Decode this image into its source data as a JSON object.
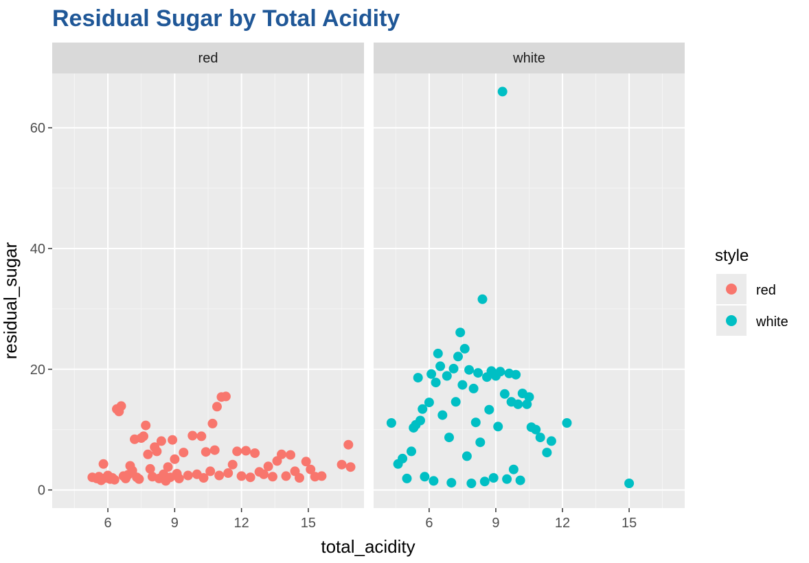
{
  "chart_data": {
    "type": "scatter",
    "title": "Residual Sugar by Total Acidity",
    "xlabel": "total_acidity",
    "ylabel": "residual_sugar",
    "xlim": [
      3.5,
      17.5
    ],
    "ylim": [
      -3,
      69
    ],
    "x_ticks": [
      6,
      9,
      12,
      15
    ],
    "y_ticks": [
      0,
      20,
      40,
      60
    ],
    "grid": true,
    "colors": {
      "red": "#F8766D",
      "white": "#00BFC4",
      "title": "#1F5797"
    },
    "legend": {
      "title": "style",
      "placement": "right",
      "entries": [
        {
          "label": "red",
          "color": "#F8766D"
        },
        {
          "label": "white",
          "color": "#00BFC4"
        }
      ]
    },
    "panels": [
      {
        "label": "red",
        "series": "red",
        "points": [
          [
            5.3,
            2.1
          ],
          [
            5.5,
            1.9
          ],
          [
            5.6,
            2.2
          ],
          [
            5.7,
            1.6
          ],
          [
            5.8,
            4.3
          ],
          [
            5.9,
            2.0
          ],
          [
            6.0,
            2.4
          ],
          [
            6.1,
            1.8
          ],
          [
            6.2,
            2.0
          ],
          [
            6.3,
            1.7
          ],
          [
            6.4,
            13.4
          ],
          [
            6.5,
            13.0
          ],
          [
            6.6,
            13.9
          ],
          [
            6.7,
            2.3
          ],
          [
            6.8,
            1.9
          ],
          [
            6.9,
            2.5
          ],
          [
            7.0,
            4.0
          ],
          [
            7.1,
            3.2
          ],
          [
            7.2,
            8.4
          ],
          [
            7.3,
            2.1
          ],
          [
            7.4,
            1.8
          ],
          [
            7.5,
            8.6
          ],
          [
            7.6,
            8.9
          ],
          [
            7.7,
            10.7
          ],
          [
            7.8,
            5.9
          ],
          [
            7.9,
            3.5
          ],
          [
            8.0,
            2.2
          ],
          [
            8.1,
            7.1
          ],
          [
            8.2,
            6.4
          ],
          [
            8.3,
            1.9
          ],
          [
            8.4,
            8.1
          ],
          [
            8.5,
            2.6
          ],
          [
            8.6,
            1.5
          ],
          [
            8.7,
            3.8
          ],
          [
            8.8,
            2.1
          ],
          [
            8.9,
            8.3
          ],
          [
            9.0,
            5.1
          ],
          [
            9.1,
            2.7
          ],
          [
            9.2,
            1.9
          ],
          [
            9.4,
            6.2
          ],
          [
            9.6,
            2.4
          ],
          [
            9.8,
            9.0
          ],
          [
            10.0,
            2.6
          ],
          [
            10.2,
            8.9
          ],
          [
            10.3,
            2.0
          ],
          [
            10.4,
            6.3
          ],
          [
            10.6,
            3.1
          ],
          [
            10.7,
            11.0
          ],
          [
            10.8,
            6.6
          ],
          [
            10.9,
            13.8
          ],
          [
            11.0,
            2.4
          ],
          [
            11.1,
            15.4
          ],
          [
            11.3,
            15.5
          ],
          [
            11.4,
            2.8
          ],
          [
            11.6,
            4.2
          ],
          [
            11.8,
            6.4
          ],
          [
            12.0,
            2.3
          ],
          [
            12.2,
            6.5
          ],
          [
            12.4,
            2.1
          ],
          [
            12.6,
            6.1
          ],
          [
            12.8,
            3.0
          ],
          [
            13.0,
            2.6
          ],
          [
            13.2,
            3.9
          ],
          [
            13.4,
            2.2
          ],
          [
            13.6,
            4.8
          ],
          [
            13.8,
            5.9
          ],
          [
            14.0,
            2.3
          ],
          [
            14.2,
            5.8
          ],
          [
            14.4,
            3.1
          ],
          [
            14.6,
            2.0
          ],
          [
            14.9,
            4.7
          ],
          [
            15.1,
            3.4
          ],
          [
            15.3,
            2.2
          ],
          [
            15.6,
            2.3
          ],
          [
            16.5,
            4.2
          ],
          [
            16.8,
            7.5
          ],
          [
            16.9,
            3.8
          ]
        ]
      },
      {
        "label": "white",
        "series": "white",
        "points": [
          [
            4.3,
            11.1
          ],
          [
            4.6,
            4.3
          ],
          [
            4.8,
            5.2
          ],
          [
            5.0,
            1.9
          ],
          [
            5.2,
            6.4
          ],
          [
            5.3,
            10.3
          ],
          [
            5.4,
            10.8
          ],
          [
            5.5,
            18.6
          ],
          [
            5.6,
            11.5
          ],
          [
            5.7,
            13.4
          ],
          [
            5.8,
            2.2
          ],
          [
            6.0,
            14.5
          ],
          [
            6.1,
            19.2
          ],
          [
            6.2,
            1.5
          ],
          [
            6.3,
            17.8
          ],
          [
            6.4,
            22.6
          ],
          [
            6.5,
            20.5
          ],
          [
            6.6,
            12.4
          ],
          [
            6.8,
            18.9
          ],
          [
            6.9,
            8.7
          ],
          [
            7.0,
            1.2
          ],
          [
            7.1,
            20.1
          ],
          [
            7.2,
            14.6
          ],
          [
            7.3,
            22.1
          ],
          [
            7.4,
            26.1
          ],
          [
            7.5,
            17.4
          ],
          [
            7.6,
            23.4
          ],
          [
            7.7,
            5.6
          ],
          [
            7.8,
            19.9
          ],
          [
            7.9,
            1.1
          ],
          [
            8.0,
            16.8
          ],
          [
            8.1,
            11.2
          ],
          [
            8.2,
            19.4
          ],
          [
            8.3,
            7.9
          ],
          [
            8.4,
            31.6
          ],
          [
            8.5,
            1.4
          ],
          [
            8.6,
            18.7
          ],
          [
            8.7,
            13.3
          ],
          [
            8.8,
            19.7
          ],
          [
            8.9,
            2.0
          ],
          [
            9.0,
            18.9
          ],
          [
            9.1,
            10.5
          ],
          [
            9.2,
            19.6
          ],
          [
            9.3,
            66.0
          ],
          [
            9.4,
            15.9
          ],
          [
            9.5,
            1.8
          ],
          [
            9.6,
            19.3
          ],
          [
            9.7,
            14.6
          ],
          [
            9.8,
            3.4
          ],
          [
            9.9,
            19.1
          ],
          [
            10.0,
            14.2
          ],
          [
            10.1,
            1.6
          ],
          [
            10.2,
            16.0
          ],
          [
            10.4,
            14.2
          ],
          [
            10.5,
            15.4
          ],
          [
            10.6,
            10.4
          ],
          [
            10.8,
            10.0
          ],
          [
            11.0,
            8.7
          ],
          [
            11.3,
            6.2
          ],
          [
            11.5,
            8.1
          ],
          [
            12.2,
            11.1
          ],
          [
            15.0,
            1.1
          ]
        ]
      }
    ]
  }
}
